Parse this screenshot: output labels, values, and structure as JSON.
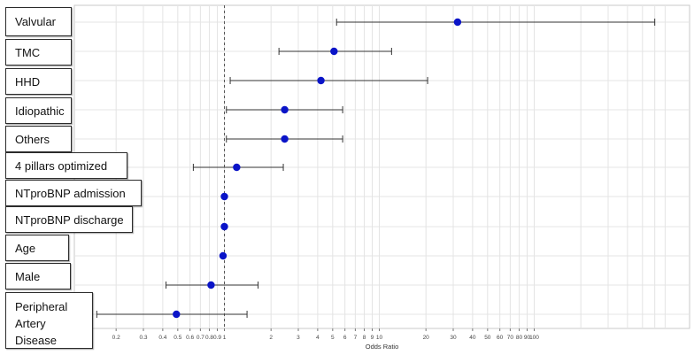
{
  "chart_data": {
    "type": "forest",
    "xlabel": "Odds Ratio",
    "xscale": "log",
    "xlim": [
      0.13,
      700
    ],
    "reference_line": 1,
    "x_ticks": [
      "0.2",
      "0.3",
      "0.4",
      "0.5",
      "0.6",
      "0.7",
      "0.8",
      "0.9",
      "1",
      "2",
      "3",
      "4",
      "5",
      "6",
      "7",
      "8",
      "9",
      "10",
      "20",
      "30",
      "40",
      "50",
      "60",
      "70",
      "80",
      "90",
      "100"
    ],
    "tick_values": [
      0.2,
      0.3,
      0.4,
      0.5,
      0.6,
      0.7,
      0.8,
      0.9,
      1,
      2,
      3,
      4,
      5,
      6,
      7,
      8,
      9,
      10,
      20,
      30,
      40,
      50,
      60,
      70,
      80,
      90,
      100
    ],
    "colors": {
      "point": "#0a14c8",
      "whisker": "#333333",
      "grid": "#e4e4e4",
      "reference": "#555555"
    },
    "rows": [
      {
        "label": "Valvular",
        "or": 32,
        "lower": 5.3,
        "upper": 600
      },
      {
        "label": "TMC",
        "or": 5.1,
        "lower": 2.25,
        "upper": 12
      },
      {
        "label": "HHD",
        "or": 4.2,
        "lower": 1.09,
        "upper": 20.5
      },
      {
        "label": "Idiopathic",
        "or": 2.45,
        "lower": 1.03,
        "upper": 5.8
      },
      {
        "label": "Others",
        "or": 2.45,
        "lower": 1.03,
        "upper": 5.8
      },
      {
        "label": "4 pillars optimized",
        "or": 1.2,
        "lower": 0.63,
        "upper": 2.4
      },
      {
        "label": "NTproBNP admission",
        "or": 1.0,
        "lower": 1.0,
        "upper": 1.0
      },
      {
        "label": "NTproBNP discharge",
        "or": 1.0,
        "lower": 1.0,
        "upper": 1.0
      },
      {
        "label": "Age",
        "or": 0.98,
        "lower": 0.97,
        "upper": 0.99
      },
      {
        "label": "Male",
        "or": 0.82,
        "lower": 0.42,
        "upper": 1.65
      },
      {
        "label": "Peripheral\nArtery\nDisease",
        "or": 0.49,
        "lower": 0.15,
        "upper": 1.4
      }
    ]
  }
}
